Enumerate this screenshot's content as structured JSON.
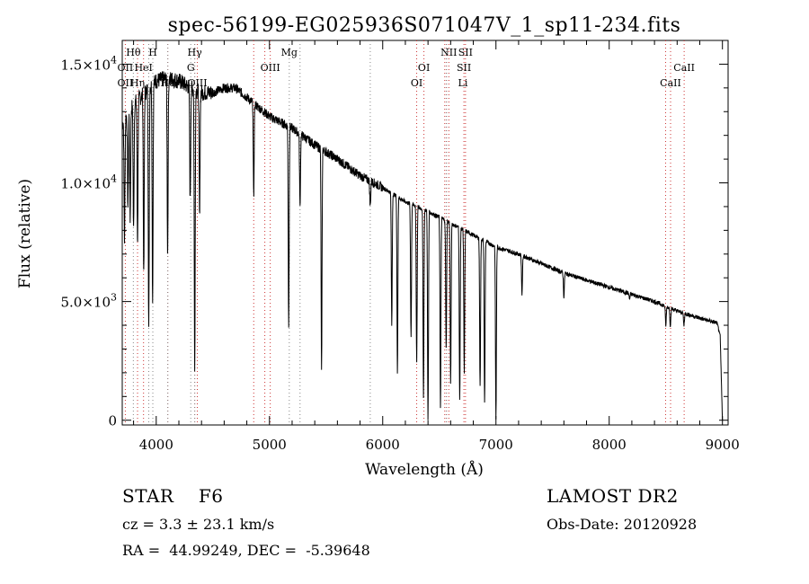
{
  "chart_data": {
    "type": "line",
    "title": "spec-56199-EG025936S071047V_1_sp11-234.fits",
    "xlabel": "Wavelength (Å)",
    "ylabel": "Flux (relative)",
    "xlim": [
      3700,
      9050
    ],
    "ylim": [
      -200,
      16000
    ],
    "x_ticks": [
      4000,
      5000,
      6000,
      7000,
      8000,
      9000
    ],
    "x_tick_labels": [
      "4000",
      "5000",
      "6000",
      "7000",
      "8000",
      "9000"
    ],
    "y_ticks": [
      0,
      5000,
      10000,
      15000
    ],
    "y_tick_labels": [
      {
        "mant": "0",
        "exp": ""
      },
      {
        "mant": "5.0×10",
        "exp": "3"
      },
      {
        "mant": "1.0×10",
        "exp": "4"
      },
      {
        "mant": "1.5×10",
        "exp": "4"
      }
    ],
    "continuum": [
      [
        3700,
        12500
      ],
      [
        3800,
        13300
      ],
      [
        3900,
        13800
      ],
      [
        4000,
        14300
      ],
      [
        4100,
        14400
      ],
      [
        4200,
        14300
      ],
      [
        4300,
        14000
      ],
      [
        4400,
        13800
      ],
      [
        4500,
        13800
      ],
      [
        4600,
        14000
      ],
      [
        4700,
        14000
      ],
      [
        4800,
        13600
      ],
      [
        5000,
        12800
      ],
      [
        5200,
        12300
      ],
      [
        5400,
        11600
      ],
      [
        5600,
        11000
      ],
      [
        5800,
        10300
      ],
      [
        6000,
        9800
      ],
      [
        6200,
        9200
      ],
      [
        6400,
        8800
      ],
      [
        6600,
        8300
      ],
      [
        6800,
        7800
      ],
      [
        7000,
        7300
      ],
      [
        7200,
        7000
      ],
      [
        7400,
        6600
      ],
      [
        7600,
        6200
      ],
      [
        7800,
        5900
      ],
      [
        8000,
        5600
      ],
      [
        8200,
        5300
      ],
      [
        8400,
        5000
      ],
      [
        8600,
        4600
      ],
      [
        8800,
        4300
      ],
      [
        8950,
        4100
      ],
      [
        8980,
        3600
      ],
      [
        9000,
        0
      ]
    ],
    "absorption_lines": [
      {
        "x": 3720,
        "min": 7600
      },
      {
        "x": 3750,
        "min": 9000
      },
      {
        "x": 3770,
        "min": 8500
      },
      {
        "x": 3800,
        "min": 8000
      },
      {
        "x": 3835,
        "min": 7500
      },
      {
        "x": 3890,
        "min": 6000
      },
      {
        "x": 3934,
        "min": 3700
      },
      {
        "x": 3968,
        "min": 5000
      },
      {
        "x": 4101,
        "min": 7000
      },
      {
        "x": 4300,
        "min": 9200
      },
      {
        "x": 4340,
        "min": 2000
      },
      {
        "x": 4383,
        "min": 8500
      },
      {
        "x": 4861,
        "min": 9500
      },
      {
        "x": 5170,
        "min": 4000
      },
      {
        "x": 5270,
        "min": 9000
      },
      {
        "x": 5460,
        "min": 2000
      },
      {
        "x": 5890,
        "min": 9000
      },
      {
        "x": 6080,
        "min": 4000
      },
      {
        "x": 6130,
        "min": 2000
      },
      {
        "x": 6250,
        "min": 3500
      },
      {
        "x": 6300,
        "min": 2500
      },
      {
        "x": 6360,
        "min": 1000
      },
      {
        "x": 6400,
        "min": 0
      },
      {
        "x": 6510,
        "min": 500
      },
      {
        "x": 6560,
        "min": 3000
      },
      {
        "x": 6600,
        "min": 1500
      },
      {
        "x": 6680,
        "min": 800
      },
      {
        "x": 6720,
        "min": 2000
      },
      {
        "x": 6860,
        "min": 1500
      },
      {
        "x": 6900,
        "min": 700
      },
      {
        "x": 7000,
        "min": 0
      },
      {
        "x": 7230,
        "min": 5300
      },
      {
        "x": 7600,
        "min": 5200
      },
      {
        "x": 8180,
        "min": 5100
      },
      {
        "x": 8500,
        "min": 4000
      },
      {
        "x": 8540,
        "min": 4000
      },
      {
        "x": 8660,
        "min": 4000
      }
    ],
    "line_markers": [
      {
        "label": "Hθ",
        "x": 3798,
        "row": 1
      },
      {
        "label": "OII",
        "x": 3727,
        "row": 2
      },
      {
        "label": "HeI",
        "x": 3888,
        "row": 2
      },
      {
        "label": "Hη",
        "x": 3835,
        "row": 3
      },
      {
        "label": "OII",
        "x": 3727,
        "row": 3
      },
      {
        "label": "H",
        "x": 3970,
        "row": 1
      },
      {
        "label": "Hδ",
        "x": 4102,
        "row": 3
      },
      {
        "label": "Hγ",
        "x": 4340,
        "row": 1
      },
      {
        "label": "G",
        "x": 4305,
        "row": 2
      },
      {
        "label": "OIII",
        "x": 4363,
        "row": 3
      },
      {
        "label": "Mg",
        "x": 5175,
        "row": 1
      },
      {
        "label": "OIII",
        "x": 5007,
        "row": 2
      },
      {
        "label": "OI",
        "x": 6364,
        "row": 2
      },
      {
        "label": "OI",
        "x": 6300,
        "row": 3
      },
      {
        "label": "NII",
        "x": 6584,
        "row": 1
      },
      {
        "label": "SII",
        "x": 6731,
        "row": 1
      },
      {
        "label": "SII",
        "x": 6717,
        "row": 2
      },
      {
        "label": "Li",
        "x": 6708,
        "row": 3
      },
      {
        "label": "CaII",
        "x": 8662,
        "row": 2
      },
      {
        "label": "CaII",
        "x": 8542,
        "row": 3
      }
    ],
    "emission_markers": [
      3727,
      3835,
      3888,
      4102,
      4340,
      4363,
      4861,
      4959,
      5007,
      6300,
      6364,
      6548,
      6563,
      6584,
      6717,
      6731,
      8498,
      8542,
      8662
    ],
    "absorption_markers": [
      3798,
      3934,
      3970,
      4102,
      4305,
      4340,
      5175,
      5270,
      5890,
      6563
    ],
    "colors": {
      "spectrum": "#000000",
      "emission_marker": "#cc3333",
      "absorption_marker": "#888888"
    }
  },
  "info": {
    "object": "STAR    F6",
    "cz": "cz = 3.3 ± 23.1 km/s",
    "radec": "RA =  44.99249, DEC =  -5.39648",
    "survey": "LAMOST DR2",
    "obsdate": "Obs-Date: 20120928"
  }
}
